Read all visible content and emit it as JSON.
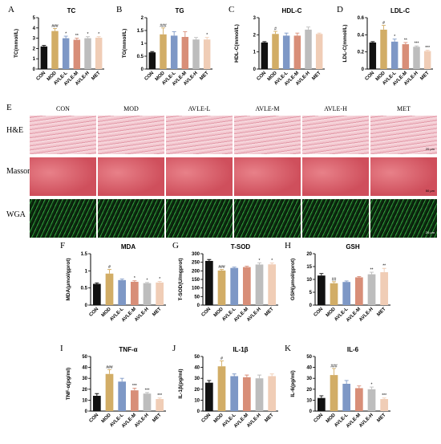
{
  "histology": {
    "letter": "E",
    "rows": [
      "H&E",
      "Masson",
      "WGA"
    ],
    "columns": [
      "CON",
      "MOD",
      "AVLE-L",
      "AVLE-M",
      "AVLE-H",
      "MET"
    ],
    "scalebars": [
      "20 μm",
      "50 μm",
      "20 μm"
    ]
  },
  "colors": {
    "CON": "#111111",
    "MOD": "#d2ad66",
    "AVLE-L": "#7e98c6",
    "AVLE-M": "#d88e78",
    "AVLE-H": "#bdbdbd",
    "MET": "#f0cdb6",
    "he": "#e6aab6",
    "masson": "#d85f68",
    "wga": "#1d6b26"
  },
  "chart_data": [
    {
      "letter": "A",
      "type": "bar",
      "title": "TC",
      "ylabel": "TC(mmol/L)",
      "ylim": [
        0,
        5
      ],
      "yticks": [
        0,
        1,
        2,
        3,
        4,
        5
      ],
      "categories": [
        "CON",
        "MOD",
        "AVLE-L",
        "AVLE-M",
        "AVLE-H",
        "MET"
      ],
      "values": [
        2.2,
        3.7,
        3.0,
        2.85,
        3.0,
        3.05
      ],
      "errors": [
        0.1,
        0.25,
        0.2,
        0.15,
        0.15,
        0.1
      ],
      "marks": [
        "",
        "###",
        "*",
        "**",
        "*",
        "*"
      ]
    },
    {
      "letter": "B",
      "type": "bar",
      "title": "TG",
      "ylabel": "TG(mmol/L)",
      "ylim": [
        0,
        2
      ],
      "yticks": [
        0,
        0.5,
        1,
        1.5,
        2
      ],
      "categories": [
        "CON",
        "MOD",
        "AVLE-L",
        "AVLE-M",
        "AVLE-H",
        "MET"
      ],
      "values": [
        0.65,
        1.35,
        1.3,
        1.25,
        1.15,
        1.15
      ],
      "errors": [
        0.03,
        0.25,
        0.15,
        0.2,
        0.08,
        0.08
      ],
      "marks": [
        "",
        "###",
        "",
        "",
        "",
        "*"
      ]
    },
    {
      "letter": "C",
      "type": "bar",
      "title": "HDL-C",
      "ylabel": "HDL-C(mmol/L)",
      "ylim": [
        0,
        3
      ],
      "yticks": [
        0,
        1,
        2,
        3
      ],
      "categories": [
        "CON",
        "MOD",
        "AVLE-L",
        "AVLE-M",
        "AVLE-H",
        "MET"
      ],
      "values": [
        1.55,
        2.05,
        1.95,
        1.95,
        2.3,
        2.05
      ],
      "errors": [
        0.05,
        0.15,
        0.15,
        0.15,
        0.15,
        0.05
      ],
      "marks": [
        "",
        "#",
        "",
        "",
        "",
        ""
      ]
    },
    {
      "letter": "D",
      "type": "bar",
      "title": "LDL-C",
      "ylabel": "LDL-C(mmol/L)",
      "ylim": [
        0,
        0.6
      ],
      "yticks": [
        0,
        0.2,
        0.4,
        0.6
      ],
      "categories": [
        "CON",
        "MOD",
        "AVLE-L",
        "AVLE-M",
        "AVLE-H",
        "MET"
      ],
      "values": [
        0.31,
        0.46,
        0.32,
        0.29,
        0.26,
        0.21
      ],
      "errors": [
        0.01,
        0.05,
        0.03,
        0.02,
        0.01,
        0.01
      ],
      "marks": [
        "",
        "#",
        "*",
        "**",
        "***",
        "***"
      ]
    },
    {
      "letter": "F",
      "type": "bar",
      "title": "MDA",
      "ylabel": "MDA(μmol/gprot)",
      "ylim": [
        0,
        1.5
      ],
      "yticks": [
        0,
        0.5,
        1,
        1.5
      ],
      "categories": [
        "CON",
        "MOD",
        "AVLE-L",
        "AVLE-M",
        "AVLE-H",
        "MET"
      ],
      "values": [
        0.62,
        0.92,
        0.73,
        0.68,
        0.64,
        0.66
      ],
      "errors": [
        0.03,
        0.12,
        0.03,
        0.03,
        0.02,
        0.03
      ],
      "marks": [
        "",
        "#",
        "",
        "*",
        "*",
        "*"
      ]
    },
    {
      "letter": "G",
      "type": "bar",
      "title": "T-SOD",
      "ylabel": "T-SOD(U/mgprot)",
      "ylim": [
        0,
        300
      ],
      "yticks": [
        0,
        50,
        100,
        150,
        200,
        250,
        300
      ],
      "categories": [
        "CON",
        "MOD",
        "AVLE-L",
        "AVLE-M",
        "AVLE-H",
        "MET"
      ],
      "values": [
        258,
        202,
        217,
        222,
        237,
        238
      ],
      "errors": [
        8,
        6,
        5,
        5,
        10,
        8
      ],
      "marks": [
        "",
        "###",
        "",
        "",
        "*",
        "*"
      ]
    },
    {
      "letter": "H",
      "type": "bar",
      "title": "GSH",
      "ylabel": "GSH(μmol/gprot)",
      "ylim": [
        0,
        20
      ],
      "yticks": [
        0,
        5,
        10,
        15,
        20
      ],
      "categories": [
        "CON",
        "MOD",
        "AVLE-L",
        "AVLE-M",
        "AVLE-H",
        "MET"
      ],
      "values": [
        11.5,
        8.5,
        9.0,
        10.8,
        12.0,
        12.8
      ],
      "errors": [
        0.8,
        0.6,
        0.4,
        0.3,
        0.8,
        1.5
      ],
      "marks": [
        "",
        "##",
        "",
        "",
        "**",
        "**"
      ]
    },
    {
      "letter": "I",
      "type": "bar",
      "title": "TNF-α",
      "ylabel": "TNF-α(pg/ml)",
      "ylim": [
        0,
        50
      ],
      "yticks": [
        0,
        10,
        20,
        30,
        40,
        50
      ],
      "categories": [
        "CON",
        "MOD",
        "AVLE-L",
        "AVLE-M",
        "AVLE-H",
        "MET"
      ],
      "values": [
        14,
        34,
        27,
        19,
        16,
        11
      ],
      "errors": [
        2,
        4,
        3,
        2,
        1,
        1
      ],
      "marks": [
        "",
        "###",
        "",
        "***",
        "***",
        "***"
      ]
    },
    {
      "letter": "J",
      "type": "bar",
      "title": "IL-1β",
      "ylabel": "IL-1β(pg/ml)",
      "ylim": [
        0,
        50
      ],
      "yticks": [
        0,
        10,
        20,
        30,
        40,
        50
      ],
      "categories": [
        "CON",
        "MOD",
        "AVLE-L",
        "AVLE-M",
        "AVLE-H",
        "MET"
      ],
      "values": [
        26,
        41,
        32,
        31,
        30,
        32
      ],
      "errors": [
        2,
        5,
        2,
        2,
        3,
        2
      ],
      "marks": [
        "",
        "#",
        "",
        "",
        "",
        ""
      ]
    },
    {
      "letter": "K",
      "type": "bar",
      "title": "IL-6",
      "ylabel": "IL-6(pg/ml)",
      "ylim": [
        0,
        50
      ],
      "yticks": [
        0,
        10,
        20,
        30,
        40,
        50
      ],
      "categories": [
        "CON",
        "MOD",
        "AVLE-L",
        "AVLE-M",
        "AVLE-H",
        "MET"
      ],
      "values": [
        12,
        33,
        25,
        21,
        20,
        11
      ],
      "errors": [
        2,
        6,
        3,
        2,
        2,
        1
      ],
      "marks": [
        "",
        "###",
        "",
        "",
        "*",
        "***"
      ]
    }
  ]
}
